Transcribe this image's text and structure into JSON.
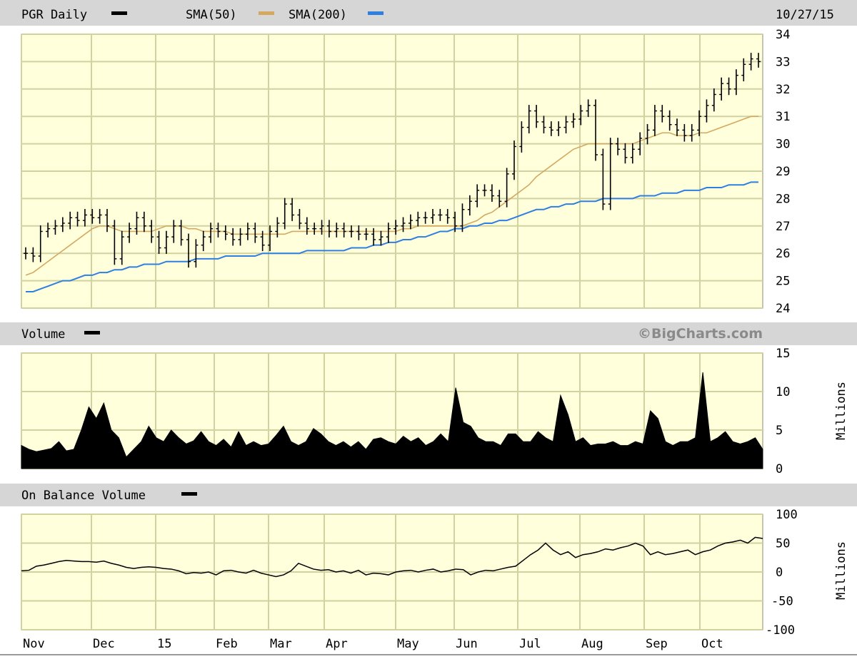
{
  "chart_data": [
    {
      "type": "line",
      "panel": "price",
      "title": "PGR Daily",
      "date": "10/27/15",
      "x_labels": [
        "Nov",
        "Dec",
        "15",
        "Feb",
        "Mar",
        "Apr",
        "May",
        "Jun",
        "Jul",
        "Aug",
        "Sep",
        "Oct"
      ],
      "y_ticks": [
        24,
        25,
        26,
        27,
        28,
        29,
        30,
        31,
        32,
        33,
        34
      ],
      "ylim": [
        24,
        34
      ],
      "grid": true,
      "legend_position": "top-left",
      "legend": [
        {
          "name": "PGR Daily",
          "color": "#000000"
        },
        {
          "name": "SMA(50)",
          "color": "#d4a860"
        },
        {
          "name": "SMA(200)",
          "color": "#2f7fe0"
        }
      ],
      "series": [
        {
          "name": "PGR Daily",
          "style": "ohlc-bars",
          "color": "#000000",
          "values": [
            26.0,
            25.9,
            26.8,
            26.9,
            27.0,
            27.1,
            27.3,
            27.2,
            27.4,
            27.3,
            27.4,
            27.0,
            25.8,
            26.6,
            26.9,
            27.3,
            27.0,
            26.6,
            26.2,
            26.6,
            27.0,
            26.5,
            25.7,
            26.3,
            26.6,
            26.9,
            26.8,
            26.7,
            26.5,
            26.7,
            26.9,
            26.6,
            26.3,
            26.8,
            27.1,
            27.8,
            27.4,
            27.1,
            26.9,
            26.9,
            27.0,
            26.8,
            26.9,
            26.8,
            26.8,
            26.7,
            26.7,
            26.5,
            26.6,
            26.9,
            27.0,
            27.1,
            27.2,
            27.3,
            27.3,
            27.4,
            27.4,
            27.3,
            27.0,
            27.6,
            27.9,
            28.3,
            28.3,
            28.1,
            27.9,
            28.9,
            29.9,
            30.6,
            31.2,
            30.8,
            30.6,
            30.5,
            30.6,
            30.8,
            30.9,
            31.2,
            31.4,
            29.6,
            27.8,
            30.0,
            29.8,
            29.5,
            29.8,
            30.2,
            30.5,
            31.2,
            31.0,
            30.7,
            30.5,
            30.3,
            30.5,
            31.0,
            31.4,
            31.8,
            32.2,
            32.0,
            32.5,
            32.9,
            33.1,
            33.0
          ]
        },
        {
          "name": "SMA(50)",
          "color": "#d4a860",
          "values": [
            25.2,
            25.3,
            25.5,
            25.7,
            25.9,
            26.1,
            26.3,
            26.5,
            26.7,
            26.9,
            27.0,
            27.0,
            26.9,
            26.8,
            26.8,
            26.8,
            26.8,
            26.8,
            26.9,
            27.0,
            27.0,
            27.0,
            26.9,
            26.9,
            26.8,
            26.8,
            26.8,
            26.8,
            26.7,
            26.7,
            26.7,
            26.7,
            26.7,
            26.7,
            26.7,
            26.7,
            26.8,
            26.8,
            26.8,
            26.8,
            26.8,
            26.8,
            26.8,
            26.8,
            26.8,
            26.8,
            26.8,
            26.8,
            26.8,
            26.8,
            26.8,
            26.9,
            26.9,
            27.0,
            27.0,
            27.0,
            27.0,
            27.0,
            27.0,
            27.0,
            27.1,
            27.2,
            27.4,
            27.5,
            27.7,
            27.9,
            28.1,
            28.3,
            28.5,
            28.8,
            29.0,
            29.2,
            29.4,
            29.6,
            29.8,
            29.9,
            30.0,
            30.0,
            30.0,
            30.0,
            30.0,
            30.0,
            30.0,
            30.1,
            30.2,
            30.3,
            30.4,
            30.4,
            30.3,
            30.3,
            30.3,
            30.4,
            30.4,
            30.5,
            30.6,
            30.7,
            30.8,
            30.9,
            31.0,
            31.0
          ]
        },
        {
          "name": "SMA(200)",
          "color": "#2f7fe0",
          "values": [
            24.6,
            24.6,
            24.7,
            24.8,
            24.9,
            25.0,
            25.0,
            25.1,
            25.2,
            25.2,
            25.3,
            25.3,
            25.4,
            25.4,
            25.5,
            25.5,
            25.6,
            25.6,
            25.6,
            25.7,
            25.7,
            25.7,
            25.7,
            25.8,
            25.8,
            25.8,
            25.8,
            25.9,
            25.9,
            25.9,
            25.9,
            25.9,
            26.0,
            26.0,
            26.0,
            26.0,
            26.0,
            26.0,
            26.1,
            26.1,
            26.1,
            26.1,
            26.1,
            26.1,
            26.2,
            26.2,
            26.2,
            26.3,
            26.3,
            26.4,
            26.4,
            26.5,
            26.5,
            26.6,
            26.6,
            26.7,
            26.8,
            26.8,
            26.9,
            26.9,
            27.0,
            27.0,
            27.1,
            27.1,
            27.2,
            27.2,
            27.3,
            27.4,
            27.5,
            27.6,
            27.6,
            27.7,
            27.7,
            27.8,
            27.8,
            27.9,
            27.9,
            27.9,
            28.0,
            28.0,
            28.0,
            28.0,
            28.0,
            28.1,
            28.1,
            28.1,
            28.2,
            28.2,
            28.2,
            28.3,
            28.3,
            28.3,
            28.4,
            28.4,
            28.4,
            28.5,
            28.5,
            28.5,
            28.6,
            28.6
          ]
        }
      ]
    },
    {
      "type": "area",
      "panel": "volume",
      "title": "Volume",
      "watermark": "©BigCharts.com",
      "ylabel": "Millions",
      "y_ticks": [
        0,
        5,
        10,
        15
      ],
      "ylim": [
        0,
        15
      ],
      "grid": true,
      "series": [
        {
          "name": "Volume",
          "color": "#000000",
          "values": [
            3.0,
            2.5,
            2.2,
            2.4,
            2.6,
            3.5,
            2.3,
            2.5,
            5.0,
            8.0,
            6.5,
            8.5,
            5.0,
            4.0,
            1.5,
            2.5,
            3.5,
            5.5,
            4.0,
            3.5,
            5.0,
            4.0,
            3.2,
            3.6,
            4.8,
            3.5,
            3.0,
            3.8,
            2.8,
            4.8,
            3.0,
            3.5,
            3.0,
            3.2,
            4.3,
            5.5,
            3.5,
            3.0,
            3.5,
            5.2,
            4.5,
            3.5,
            3.0,
            3.5,
            2.8,
            3.5,
            2.5,
            3.8,
            4.0,
            3.5,
            3.2,
            4.2,
            3.5,
            4.0,
            3.0,
            3.5,
            4.5,
            3.5,
            10.5,
            6.0,
            5.5,
            4.0,
            3.5,
            3.5,
            3.0,
            4.5,
            4.5,
            3.5,
            3.5,
            4.8,
            4.0,
            3.5,
            9.5,
            7.0,
            3.5,
            4.0,
            3.0,
            3.2,
            3.2,
            3.5,
            3.0,
            3.0,
            3.5,
            3.2,
            7.5,
            6.5,
            3.5,
            3.0,
            3.5,
            3.5,
            4.0,
            12.5,
            3.5,
            4.0,
            4.8,
            3.5,
            3.2,
            3.5,
            4.0,
            2.5
          ]
        }
      ]
    },
    {
      "type": "line",
      "panel": "obv",
      "title": "On Balance Volume",
      "ylabel": "Millions",
      "y_ticks": [
        100,
        50,
        0,
        -50,
        -100
      ],
      "ylim": [
        -100,
        100
      ],
      "grid": true,
      "series": [
        {
          "name": "On Balance Volume",
          "color": "#000000",
          "values": [
            2,
            3,
            10,
            12,
            15,
            18,
            20,
            19,
            18,
            18,
            17,
            19,
            15,
            12,
            8,
            6,
            8,
            9,
            8,
            6,
            5,
            2,
            -3,
            -1,
            -2,
            0,
            -5,
            2,
            3,
            0,
            -2,
            3,
            -2,
            -5,
            -8,
            -5,
            2,
            15,
            10,
            5,
            3,
            4,
            0,
            2,
            -2,
            3,
            -5,
            -2,
            -3,
            -5,
            0,
            2,
            3,
            0,
            3,
            5,
            0,
            2,
            5,
            4,
            -5,
            0,
            3,
            2,
            5,
            8,
            10,
            20,
            30,
            38,
            50,
            38,
            30,
            35,
            25,
            30,
            32,
            35,
            40,
            38,
            42,
            45,
            50,
            45,
            30,
            35,
            30,
            32,
            35,
            38,
            30,
            35,
            38,
            45,
            50,
            52,
            55,
            50,
            60,
            58
          ]
        }
      ]
    }
  ]
}
